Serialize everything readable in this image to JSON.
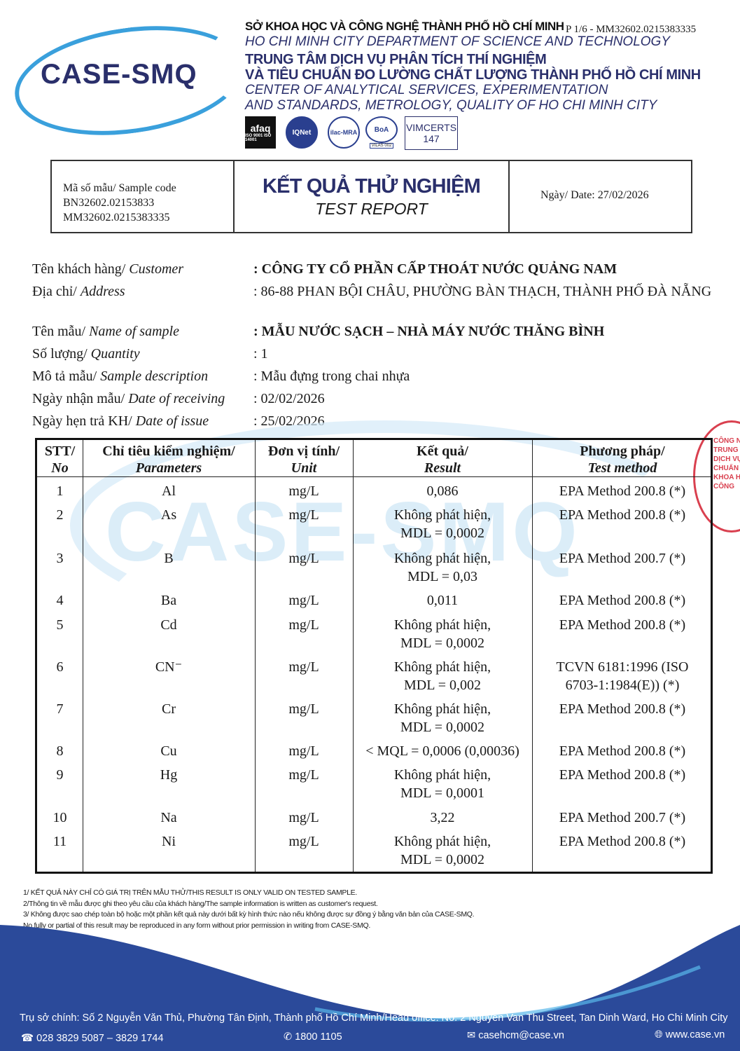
{
  "header": {
    "logo": "CASE-SMQ",
    "dept_vi": "SỞ KHOA HỌC VÀ CÔNG NGHỆ THÀNH PHỐ HỒ CHÍ MINH",
    "page_ref": "P 1/6 - MM32602.0215383335",
    "dept_en": "HO CHI MINH CITY DEPARTMENT OF SCIENCE AND TECHNOLOGY",
    "center_vi_1": "TRUNG TÂM DỊCH VỤ PHÂN TÍCH THÍ NGHIỆM",
    "center_vi_2": "VÀ TIÊU CHUẨN ĐO LƯỜNG CHẤT LƯỢNG THÀNH PHỐ HỒ CHÍ MINH",
    "center_en_1": "CENTER OF ANALYTICAL SERVICES, EXPERIMENTATION",
    "center_en_2": "AND STANDARDS, METROLOGY, QUALITY OF HO CHI MINH CITY",
    "certs": {
      "afaq": "afaq",
      "afaq_sub": "ISO 9001 ISO 14001",
      "iqnet": "IQNet",
      "ilac": "ilac-MRA",
      "boa": "BoA",
      "vilas": "VILAS 002",
      "vimcerts": "VIMCERTS",
      "vimcerts_no": "147"
    }
  },
  "title_box": {
    "sample_code_label": "Mã số mẫu/ Sample code",
    "sample_code_1": "BN32602.02153833",
    "sample_code_2": "MM32602.0215383335",
    "title_vi": "KẾT QUẢ THỬ NGHIỆM",
    "title_en": "TEST REPORT",
    "date": "Ngày/ Date: 27/02/2026"
  },
  "info": [
    {
      "label_vi": "Tên khách hàng/ ",
      "label_en": "Customer",
      "value": ": CÔNG TY CỔ PHẦN CẤP THOÁT NƯỚC QUẢNG NAM",
      "bold": true
    },
    {
      "label_vi": "Địa chỉ/ ",
      "label_en": "Address",
      "value": ": 86-88 PHAN BỘI CHÂU, PHƯỜNG BÀN THẠCH, THÀNH PHỐ ĐÀ NẴNG",
      "bold": false
    },
    {
      "label_vi": "Tên mẫu/ ",
      "label_en": "Name of sample",
      "value": ": MẪU NƯỚC SẠCH – NHÀ MÁY NƯỚC THĂNG BÌNH",
      "bold": true
    },
    {
      "label_vi": "Số lượng/ ",
      "label_en": "Quantity",
      "value": ": 1",
      "bold": false
    },
    {
      "label_vi": "Mô tả mẫu/ ",
      "label_en": "Sample description",
      "value": ": Mẫu đựng trong chai nhựa",
      "bold": false
    },
    {
      "label_vi": "Ngày nhận mẫu/ ",
      "label_en": "Date of receiving",
      "value": ": 02/02/2026",
      "bold": false
    },
    {
      "label_vi": "Ngày hẹn trả KH/ ",
      "label_en": "Date of issue",
      "value": ": 25/02/2026",
      "bold": false
    }
  ],
  "table": {
    "headers": [
      {
        "vi": "STT/",
        "en": "No"
      },
      {
        "vi": "Chỉ tiêu kiểm nghiệm/",
        "en": "Parameters"
      },
      {
        "vi": "Đơn vị tính/",
        "en": "Unit"
      },
      {
        "vi": "Kết quả/",
        "en": "Result"
      },
      {
        "vi": "Phương pháp/",
        "en": "Test method"
      }
    ],
    "rows": [
      {
        "no": "1",
        "param": "Al",
        "unit": "mg/L",
        "result": "0,086",
        "result2": "",
        "method": "EPA Method 200.8 (*)",
        "method2": ""
      },
      {
        "no": "2",
        "param": "As",
        "unit": "mg/L",
        "result": "Không phát hiện,",
        "result2": "MDL = 0,0002",
        "method": "EPA Method 200.8 (*)",
        "method2": ""
      },
      {
        "no": "3",
        "param": "B",
        "unit": "mg/L",
        "result": "Không phát hiện,",
        "result2": "MDL = 0,03",
        "method": "EPA Method 200.7 (*)",
        "method2": ""
      },
      {
        "no": "4",
        "param": "Ba",
        "unit": "mg/L",
        "result": "0,011",
        "result2": "",
        "method": "EPA Method 200.8 (*)",
        "method2": ""
      },
      {
        "no": "5",
        "param": "Cd",
        "unit": "mg/L",
        "result": "Không phát hiện,",
        "result2": "MDL = 0,0002",
        "method": "EPA Method 200.8 (*)",
        "method2": ""
      },
      {
        "no": "6",
        "param": "CN⁻",
        "unit": "mg/L",
        "result": "Không phát hiện,",
        "result2": "MDL = 0,002",
        "method": "TCVN 6181:1996 (ISO",
        "method2": "6703-1:1984(E)) (*)"
      },
      {
        "no": "7",
        "param": "Cr",
        "unit": "mg/L",
        "result": "Không phát hiện,",
        "result2": "MDL = 0,0002",
        "method": "EPA Method 200.8 (*)",
        "method2": ""
      },
      {
        "no": "8",
        "param": "Cu",
        "unit": "mg/L",
        "result": "< MQL = 0,0006 (0,00036)",
        "result2": "",
        "method": "EPA Method 200.8 (*)",
        "method2": ""
      },
      {
        "no": "9",
        "param": "Hg",
        "unit": "mg/L",
        "result": "Không phát hiện,",
        "result2": "MDL = 0,0001",
        "method": "EPA Method 200.8 (*)",
        "method2": ""
      },
      {
        "no": "10",
        "param": "Na",
        "unit": "mg/L",
        "result": "3,22",
        "result2": "",
        "method": "EPA Method 200.7 (*)",
        "method2": ""
      },
      {
        "no": "11",
        "param": "Ni",
        "unit": "mg/L",
        "result": "Không phát hiện,",
        "result2": "MDL = 0,0002",
        "method": "EPA Method 200.8 (*)",
        "method2": ""
      }
    ]
  },
  "watermark": "CASE-SMQ",
  "stamp": "CÔNG NG... TRUNG TÂM DỊCH VỤ ... TIÊU CHUẨN ... KHOA HỌC VÀ CÔNG",
  "notes": [
    "1/ KẾT QUẢ NÀY CHỈ CÓ GIÁ TRỊ TRÊN MẪU THỬ/THIS RESULT IS ONLY VALID ON TESTED SAMPLE.",
    "2/Thông tin về mẫu được ghi theo yêu cầu của khách hàng/The sample information is written as customer's request.",
    "3/ Không được sao chép toàn bộ hoặc một phần kết quả này dưới bất kỳ hình thức nào nếu không được sự đồng ý bằng văn bản của CASE-SMQ.",
    "No fully or partial of this result may be reproduced in any form without prior permission in writing from CASE-SMQ."
  ],
  "footer": {
    "address": "Trụ sở chính: Số 2 Nguyễn Văn Thủ, Phường Tân Định, Thành phố Hồ Chí Minh/Head office: No. 2 Nguyen Van Thu Street, Tan Dinh Ward, Ho Chi Minh City",
    "phone": "028 3829 5087 – 3829 1744",
    "hotline": "1800 1105",
    "email": "casehcm@case.vn",
    "website": "www.case.vn"
  },
  "colors": {
    "brand_navy": "#2a2f6b",
    "brand_blue": "#3aa0dc",
    "footer_blue": "#2b4a9a",
    "stamp_red": "#d9404f"
  }
}
